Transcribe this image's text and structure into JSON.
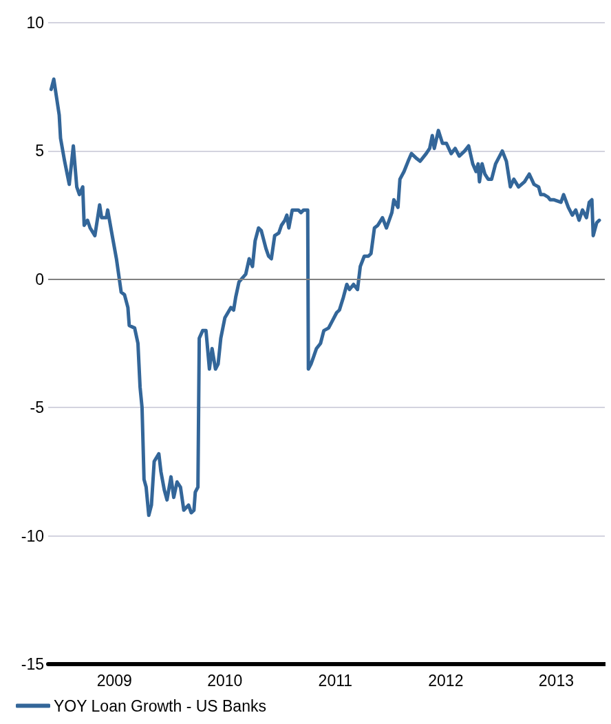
{
  "chart_data": {
    "type": "line",
    "x": [
      2008.927,
      2008.951,
      2009.0,
      2009.012,
      2009.049,
      2009.091,
      2009.128,
      2009.159,
      2009.183,
      2009.213,
      2009.226,
      2009.256,
      2009.28,
      2009.323,
      2009.366,
      2009.384,
      2009.427,
      2009.439,
      2009.476,
      2009.518,
      2009.561,
      2009.591,
      2009.622,
      2009.634,
      2009.683,
      2009.713,
      2009.732,
      2009.75,
      2009.768,
      2009.787,
      2009.811,
      2009.835,
      2009.86,
      2009.902,
      2009.921,
      2009.951,
      2009.976,
      2010.012,
      2010.037,
      2010.067,
      2010.098,
      2010.128,
      2010.171,
      2010.195,
      2010.22,
      2010.232,
      2010.256,
      2010.268,
      2010.299,
      2010.329,
      2010.36,
      2010.384,
      2010.415,
      2010.439,
      2010.463,
      2010.5,
      2010.555,
      2010.579,
      2010.598,
      2010.628,
      2010.689,
      2010.72,
      2010.75,
      2010.774,
      2010.805,
      2010.829,
      2010.872,
      2010.896,
      2010.921,
      2010.951,
      2010.988,
      2011.012,
      2011.043,
      2011.061,
      2011.079,
      2011.11,
      2011.165,
      2011.189,
      2011.213,
      2011.25,
      2011.256,
      2011.28,
      2011.305,
      2011.329,
      2011.366,
      2011.396,
      2011.439,
      2011.476,
      2011.512,
      2011.537,
      2011.573,
      2011.604,
      2011.628,
      2011.665,
      2011.701,
      2011.726,
      2011.762,
      2011.799,
      2011.823,
      2011.854,
      2011.884,
      2011.927,
      2011.963,
      2012.012,
      2012.03,
      2012.067,
      2012.085,
      2012.122,
      2012.159,
      2012.189,
      2012.238,
      2012.268,
      2012.323,
      2012.354,
      2012.378,
      2012.396,
      2012.433,
      2012.47,
      2012.506,
      2012.549,
      2012.585,
      2012.622,
      2012.671,
      2012.707,
      2012.744,
      2012.774,
      2012.793,
      2012.805,
      2012.829,
      2012.854,
      2012.884,
      2012.915,
      2012.951,
      2013.012,
      2013.049,
      2013.085,
      2013.116,
      2013.159,
      2013.213,
      2013.256,
      2013.299,
      2013.341,
      2013.36,
      2013.39,
      2013.427,
      2013.445,
      2013.476,
      2013.543,
      2013.567,
      2013.61,
      2013.646,
      2013.677,
      2013.707,
      2013.738,
      2013.774,
      2013.799,
      2013.823,
      2013.835,
      2013.866,
      2013.89
    ],
    "series": [
      {
        "name": "YOY Loan Growth - US Banks",
        "color": "#336699",
        "values": [
          7.4,
          7.8,
          6.4,
          5.5,
          4.6,
          3.7,
          5.2,
          3.6,
          3.3,
          3.6,
          2.1,
          2.3,
          2.0,
          1.7,
          2.9,
          2.4,
          2.4,
          2.7,
          1.8,
          0.8,
          -0.5,
          -0.6,
          -1.1,
          -1.8,
          -1.9,
          -2.5,
          -4.2,
          -5.0,
          -7.8,
          -8.1,
          -9.2,
          -8.8,
          -7.1,
          -6.8,
          -7.5,
          -8.2,
          -8.6,
          -7.7,
          -8.5,
          -7.9,
          -8.1,
          -9.0,
          -8.8,
          -9.1,
          -9.0,
          -8.3,
          -8.1,
          -2.3,
          -2.0,
          -2.0,
          -3.5,
          -2.7,
          -3.5,
          -3.3,
          -2.3,
          -1.5,
          -1.1,
          -1.2,
          -0.7,
          -0.1,
          0.2,
          0.8,
          0.5,
          1.5,
          2.0,
          1.9,
          1.2,
          0.9,
          0.8,
          1.7,
          1.8,
          2.1,
          2.3,
          2.5,
          2.0,
          2.7,
          2.7,
          2.6,
          2.7,
          2.7,
          -3.5,
          -3.3,
          -3.0,
          -2.7,
          -2.5,
          -2.0,
          -1.9,
          -1.6,
          -1.3,
          -1.2,
          -0.7,
          -0.2,
          -0.4,
          -0.2,
          -0.4,
          0.5,
          0.9,
          0.9,
          1.0,
          2.0,
          2.1,
          2.4,
          2.0,
          2.6,
          3.1,
          2.8,
          3.9,
          4.2,
          4.6,
          4.9,
          4.7,
          4.6,
          4.9,
          5.1,
          5.6,
          5.1,
          5.8,
          5.3,
          5.3,
          4.9,
          5.1,
          4.8,
          5.0,
          5.2,
          4.5,
          4.2,
          4.5,
          3.8,
          4.5,
          4.1,
          3.9,
          3.9,
          4.5,
          5.0,
          4.6,
          3.6,
          3.9,
          3.6,
          3.8,
          4.1,
          3.7,
          3.6,
          3.3,
          3.3,
          3.2,
          3.1,
          3.1,
          3.0,
          3.3,
          2.8,
          2.5,
          2.7,
          2.3,
          2.7,
          2.4,
          3.0,
          3.1,
          1.7,
          2.2,
          2.3
        ]
      }
    ],
    "xlim": [
      2008.9,
      2013.94
    ],
    "xticks": [
      {
        "value": 2009.5,
        "label": "2009"
      },
      {
        "value": 2010.5,
        "label": "2010"
      },
      {
        "value": 2011.5,
        "label": "2011"
      },
      {
        "value": 2012.5,
        "label": "2012"
      },
      {
        "value": 2013.5,
        "label": "2013"
      }
    ],
    "ylim": [
      -15,
      10
    ],
    "yticks": [
      -15,
      -10,
      -5,
      0,
      5,
      10
    ],
    "grid": "y",
    "legend": "bottom left",
    "marker": "none",
    "line_style": "solid",
    "ref_lines": [
      {
        "axis": "y",
        "value": 0,
        "color": "#808080"
      }
    ]
  }
}
